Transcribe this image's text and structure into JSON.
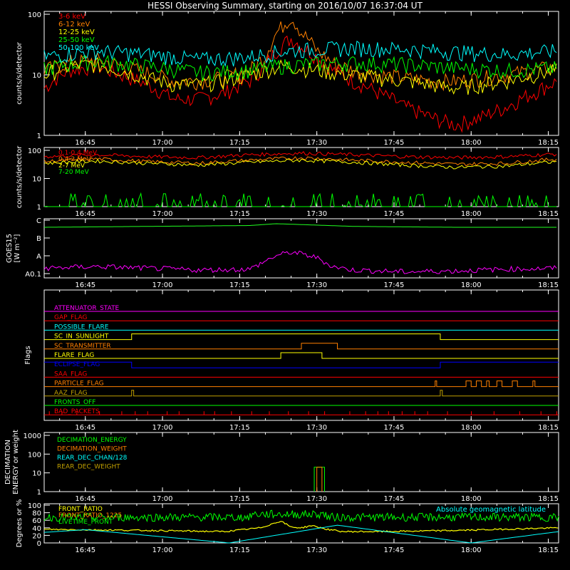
{
  "title": "HESSI Observing Summary, starting on 2016/10/07 16:37:04 UT",
  "time_ticks": [
    "16:45",
    "17:00",
    "17:15",
    "17:30",
    "17:45",
    "18:00",
    "18:15"
  ],
  "colors": {
    "red": "#ff0000",
    "orange": "#ff8000",
    "yellow": "#ffff00",
    "green": "#00ff00",
    "cyan": "#00ffff",
    "magenta": "#ff00ff",
    "blue": "#0000ff",
    "olive": "#c0a000",
    "lime": "#20ff20"
  },
  "chart_data": [
    {
      "type": "line",
      "ylabel": "counts/s/detector",
      "yscale": "log",
      "ylim": [
        1,
        100
      ],
      "y_ticks": [
        "1",
        "10",
        "100"
      ],
      "xlim_minutes": [
        0,
        100
      ],
      "series": [
        {
          "name": "3-6 keV",
          "color": "#ff0000",
          "x": [
            0,
            5,
            10,
            15,
            20,
            25,
            30,
            35,
            40,
            43,
            46,
            48,
            50,
            53,
            56,
            60,
            65,
            70,
            75,
            80,
            85,
            90,
            95,
            100
          ],
          "y": [
            6,
            12,
            14,
            10,
            7,
            4,
            4,
            5,
            8,
            14,
            30,
            40,
            30,
            20,
            12,
            8,
            5,
            3,
            2,
            1.5,
            2,
            3,
            5,
            8
          ]
        },
        {
          "name": "6-12 keV",
          "color": "#ff8000",
          "x": [
            0,
            5,
            10,
            15,
            20,
            25,
            30,
            35,
            40,
            43,
            46,
            48,
            50,
            53,
            56,
            60,
            65,
            70,
            75,
            80,
            85,
            90,
            95,
            100
          ],
          "y": [
            12,
            16,
            18,
            14,
            11,
            8,
            8,
            9,
            12,
            20,
            60,
            90,
            50,
            25,
            16,
            12,
            10,
            9,
            8,
            8,
            9,
            10,
            12,
            14
          ]
        },
        {
          "name": "12-25 keV",
          "color": "#ffff00",
          "x": [
            0,
            5,
            10,
            15,
            20,
            25,
            30,
            35,
            40,
            43,
            46,
            48,
            50,
            53,
            56,
            60,
            65,
            70,
            75,
            80,
            85,
            90,
            95,
            100
          ],
          "y": [
            10,
            14,
            15,
            12,
            9,
            7,
            7,
            8,
            10,
            12,
            14,
            14,
            13,
            12,
            11,
            10,
            9,
            8,
            7,
            6,
            7,
            8,
            10,
            12
          ]
        },
        {
          "name": "25-50 keV",
          "color": "#00ff00",
          "x": [
            0,
            10,
            20,
            30,
            40,
            45,
            50,
            60,
            70,
            80,
            90,
            100
          ],
          "y": [
            13,
            17,
            14,
            11,
            12,
            14,
            15,
            16,
            15,
            13,
            12,
            13
          ]
        },
        {
          "name": "50-100 keV",
          "color": "#00ffff",
          "x": [
            0,
            10,
            20,
            30,
            40,
            45,
            50,
            60,
            70,
            80,
            90,
            100
          ],
          "y": [
            20,
            25,
            22,
            18,
            20,
            24,
            26,
            28,
            27,
            24,
            22,
            25
          ]
        }
      ]
    },
    {
      "type": "line",
      "ylabel": "counts/s/detector",
      "yscale": "log",
      "ylim": [
        1,
        100
      ],
      "y_ticks": [
        "1",
        "10",
        "100"
      ],
      "xlim_minutes": [
        0,
        100
      ],
      "series": [
        {
          "name": "0.1-0.4 MeV",
          "color": "#ff0000",
          "x": [
            0,
            10,
            20,
            30,
            40,
            50,
            60,
            70,
            80,
            90,
            100
          ],
          "y": [
            60,
            70,
            60,
            55,
            70,
            80,
            70,
            60,
            55,
            60,
            75
          ]
        },
        {
          "name": "0.4-2 MeV",
          "color": "#ff8000",
          "x": [
            0,
            10,
            20,
            30,
            40,
            50,
            60,
            70,
            80,
            90,
            100
          ],
          "y": [
            40,
            50,
            40,
            35,
            45,
            55,
            45,
            38,
            32,
            35,
            50
          ]
        },
        {
          "name": "2-7 MeV",
          "color": "#ffff00",
          "x": [
            0,
            10,
            20,
            30,
            40,
            50,
            60,
            70,
            80,
            90,
            100
          ],
          "y": [
            35,
            42,
            35,
            30,
            38,
            45,
            38,
            30,
            25,
            28,
            40
          ]
        },
        {
          "name": "7-20 MeV",
          "color": "#00ff00",
          "x": [
            0,
            10,
            20,
            30,
            40,
            50,
            60,
            70,
            80,
            90,
            100
          ],
          "y": [
            1.5,
            2,
            1.5,
            1.2,
            1.3,
            1.2,
            1.3,
            1.2,
            1.2,
            1.3,
            1.5
          ]
        }
      ]
    },
    {
      "type": "line",
      "ylabel": "GOES15 [W m⁻²]",
      "y_ticks": [
        "A0.1",
        "A",
        "B",
        "C"
      ],
      "series": [
        {
          "color": "#20ff20",
          "x": [
            0,
            20,
            40,
            45,
            50,
            60,
            80,
            100
          ],
          "level": [
            2.6,
            2.65,
            2.7,
            2.8,
            2.75,
            2.65,
            2.6,
            2.6
          ]
        },
        {
          "color": "#ff00ff",
          "x": [
            0,
            10,
            20,
            30,
            40,
            45,
            48,
            50,
            53,
            56,
            60,
            70,
            80,
            90,
            100
          ],
          "level": [
            0.3,
            0.4,
            0.3,
            0.2,
            0.25,
            1.0,
            1.2,
            1.1,
            0.9,
            0.4,
            0.2,
            0.1,
            0.15,
            0.25,
            0.3
          ]
        }
      ]
    },
    {
      "type": "line",
      "ylabel": "Flags",
      "flags": [
        {
          "name": "ATTENUATOR_STATE",
          "color": "#ff00ff"
        },
        {
          "name": "GAP_FLAG",
          "color": "#ff0000"
        },
        {
          "name": "POSSIBLE_FLARE",
          "color": "#00ffff"
        },
        {
          "name": "SC_IN_SUNLIGHT",
          "color": "#ffff00"
        },
        {
          "name": "SC_TRANSMITTER",
          "color": "#ff8000"
        },
        {
          "name": "FLARE_FLAG",
          "color": "#ffff00"
        },
        {
          "name": "ECLIPSE_FLAG",
          "color": "#0000ff"
        },
        {
          "name": "SAA_FLAG",
          "color": "#ff0000"
        },
        {
          "name": "PARTICLE_FLAG",
          "color": "#ff8000"
        },
        {
          "name": "AAZ_FLAG",
          "color": "#c0a000"
        },
        {
          "name": "FRONTS_OFF",
          "color": "#00ff00"
        },
        {
          "name": "BAD_PACKETS",
          "color": "#ff0000"
        }
      ]
    },
    {
      "type": "line",
      "ylabel": "DECIMATION ENERGY or weight",
      "yscale": "log",
      "ylim": [
        1,
        1000
      ],
      "y_ticks": [
        "1",
        "10",
        "100",
        "1000"
      ],
      "series": [
        {
          "name": "DECIMATION_ENERGY",
          "color": "#00ff00"
        },
        {
          "name": "DECIMATION_WEIGHT",
          "color": "#ff8000"
        },
        {
          "name": "REAR_DEC_CHAN/128",
          "color": "#00ffff"
        },
        {
          "name": "REAR_DEC_WEIGHT",
          "color": "#c0a000"
        }
      ]
    },
    {
      "type": "line",
      "ylabel": "Degrees or %",
      "ylim": [
        0,
        100
      ],
      "y_ticks": [
        "0",
        "20",
        "40",
        "60",
        "80",
        "100"
      ],
      "series": [
        {
          "name": "FRONT_RATIO",
          "color": "#ffff00"
        },
        {
          "name": "FRONT_RATIO_1225",
          "color": "#ff8000"
        },
        {
          "name": "LIVETIME_FRONT",
          "color": "#00ff00"
        },
        {
          "name": "Absolute geomagnetic latitude",
          "color": "#00ffff"
        }
      ]
    }
  ]
}
